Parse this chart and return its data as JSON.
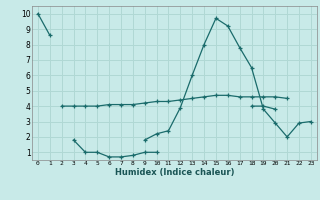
{
  "xlabel": "Humidex (Indice chaleur)",
  "background_color": "#c8eae8",
  "grid_color": "#b0d8d4",
  "line_color": "#1a6b6b",
  "xlim": [
    -0.5,
    23.5
  ],
  "ylim": [
    0.5,
    10.5
  ],
  "xticks": [
    0,
    1,
    2,
    3,
    4,
    5,
    6,
    7,
    8,
    9,
    10,
    11,
    12,
    13,
    14,
    15,
    16,
    17,
    18,
    19,
    20,
    21,
    22,
    23
  ],
  "yticks": [
    1,
    2,
    3,
    4,
    5,
    6,
    7,
    8,
    9,
    10
  ],
  "series": [
    {
      "x": [
        0,
        1
      ],
      "y": [
        10,
        8.6
      ]
    },
    {
      "x": [
        2,
        3,
        4,
        5,
        6,
        7,
        8,
        9,
        10,
        11,
        12,
        13,
        14,
        15,
        16,
        17,
        18,
        19,
        20,
        21
      ],
      "y": [
        4.0,
        4.0,
        4.0,
        4.0,
        4.1,
        4.1,
        4.1,
        4.2,
        4.3,
        4.3,
        4.4,
        4.5,
        4.6,
        4.7,
        4.7,
        4.6,
        4.6,
        4.6,
        4.6,
        4.5
      ]
    },
    {
      "x": [
        3,
        4,
        5,
        6,
        7,
        8,
        9,
        10
      ],
      "y": [
        1.8,
        1.0,
        1.0,
        0.7,
        0.7,
        0.8,
        1.0,
        1.0
      ]
    },
    {
      "x": [
        9,
        10,
        11,
        12,
        13,
        14,
        15,
        16,
        17,
        18,
        19,
        20,
        21,
        22,
        23
      ],
      "y": [
        1.8,
        2.2,
        2.4,
        3.9,
        6.0,
        8.0,
        9.7,
        9.2,
        7.8,
        6.5,
        3.8,
        2.9,
        2.0,
        2.9,
        3.0
      ]
    },
    {
      "x": [
        18,
        19,
        20
      ],
      "y": [
        4.0,
        4.0,
        3.8
      ]
    }
  ]
}
